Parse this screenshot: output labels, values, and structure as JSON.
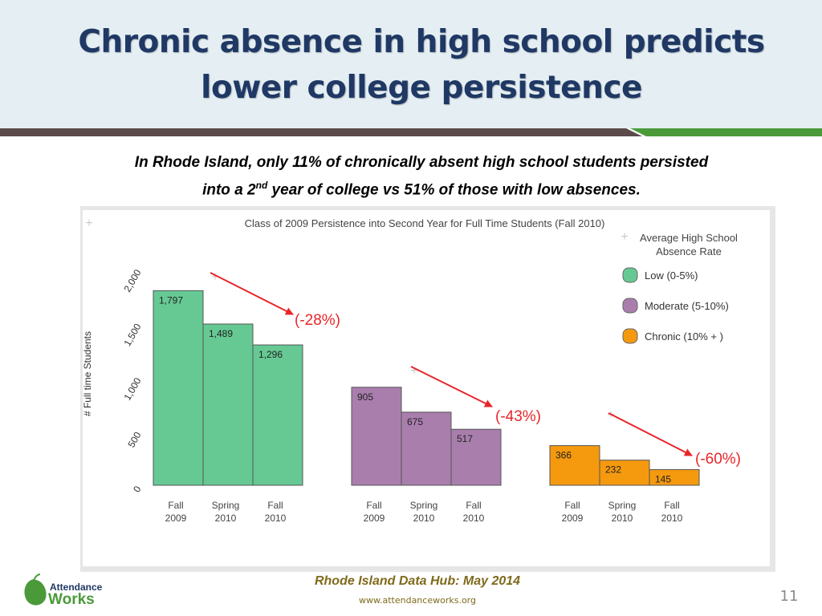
{
  "slide": {
    "title_line1": "Chronic absence in high school predicts",
    "title_line2": "lower college persistence",
    "subtitle_part1": "In Rhode Island,  only 11% of chronically absent high school students persisted",
    "subtitle_part2a": "into a 2",
    "subtitle_sup": "nd",
    "subtitle_part2b": " year of college vs 51% of those with low absences.",
    "footer_source": "Rhode Island Data Hub: May 2014",
    "footer_url": "www.attendanceworks.org",
    "page_number": "11",
    "logo_line1": "Attendance",
    "logo_line2": "Works"
  },
  "colors": {
    "title": "#1f3864",
    "low": "#66c993",
    "moderate": "#a97ead",
    "chronic": "#f5990f",
    "arrow": "#e8262a"
  },
  "chart_data": {
    "type": "bar",
    "title": "Class of 2009 Persistence into Second Year for Full Time Students (Fall 2010)",
    "ylabel": "# Full time Students",
    "ylim": [
      0,
      2000
    ],
    "yticks": [
      "0",
      "500",
      "1,000",
      "1,500",
      "2,000"
    ],
    "legend_title_line1": "Average High School",
    "legend_title_line2": "Absence Rate",
    "legend_position": "top-right",
    "groups": [
      {
        "name": "Low (0-5%)",
        "color": "#66c993",
        "change_label": "(-28%)",
        "bars": [
          {
            "x_line1": "Fall",
            "x_line2": "2009",
            "value": 1797,
            "label": "1,797"
          },
          {
            "x_line1": "Spring",
            "x_line2": "2010",
            "value": 1489,
            "label": "1,489"
          },
          {
            "x_line1": "Fall",
            "x_line2": "2010",
            "value": 1296,
            "label": "1,296"
          }
        ]
      },
      {
        "name": "Moderate (5-10%)",
        "color": "#a97ead",
        "change_label": "(-43%)",
        "bars": [
          {
            "x_line1": "Fall",
            "x_line2": "2009",
            "value": 905,
            "label": "905"
          },
          {
            "x_line1": "Spring",
            "x_line2": "2010",
            "value": 675,
            "label": "675"
          },
          {
            "x_line1": "Fall",
            "x_line2": "2010",
            "value": 517,
            "label": "517"
          }
        ]
      },
      {
        "name": "Chronic (10% + )",
        "color": "#f5990f",
        "change_label": "(-60%)",
        "bars": [
          {
            "x_line1": "Fall",
            "x_line2": "2009",
            "value": 366,
            "label": "366"
          },
          {
            "x_line1": "Spring",
            "x_line2": "2010",
            "value": 232,
            "label": "232"
          },
          {
            "x_line1": "Fall",
            "x_line2": "2010",
            "value": 145,
            "label": "145"
          }
        ]
      }
    ]
  }
}
